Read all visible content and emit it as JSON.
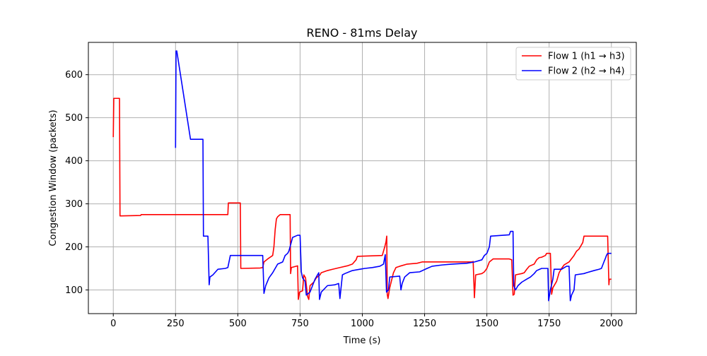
{
  "chart_data": {
    "type": "line",
    "title": "RENO - 81ms Delay",
    "xlabel": "Time (s)",
    "ylabel": "Congestion Window (packets)",
    "xlim": [
      -100,
      2100
    ],
    "ylim": [
      45,
      675
    ],
    "xticks": [
      0,
      250,
      500,
      750,
      1000,
      1250,
      1500,
      1750,
      2000
    ],
    "yticks": [
      100,
      200,
      300,
      400,
      500,
      600
    ],
    "grid": true,
    "legend_position": "top-right",
    "series": [
      {
        "name": "Flow 1 (h1 → h3)",
        "color": "#ff0000",
        "points": [
          [
            0,
            455
          ],
          [
            2,
            545
          ],
          [
            25,
            545
          ],
          [
            27,
            272
          ],
          [
            110,
            273
          ],
          [
            112,
            275
          ],
          [
            460,
            275
          ],
          [
            462,
            302
          ],
          [
            510,
            302
          ],
          [
            512,
            150
          ],
          [
            590,
            151
          ],
          [
            600,
            152
          ],
          [
            605,
            165
          ],
          [
            620,
            172
          ],
          [
            635,
            178
          ],
          [
            640,
            180
          ],
          [
            645,
            200
          ],
          [
            650,
            240
          ],
          [
            655,
            265
          ],
          [
            660,
            270
          ],
          [
            670,
            275
          ],
          [
            710,
            275
          ],
          [
            712,
            138
          ],
          [
            715,
            152
          ],
          [
            740,
            156
          ],
          [
            743,
            78
          ],
          [
            748,
            95
          ],
          [
            760,
            98
          ],
          [
            765,
            135
          ],
          [
            772,
            128
          ],
          [
            780,
            85
          ],
          [
            785,
            78
          ],
          [
            790,
            110
          ],
          [
            805,
            118
          ],
          [
            815,
            128
          ],
          [
            830,
            135
          ],
          [
            835,
            140
          ],
          [
            860,
            145
          ],
          [
            880,
            148
          ],
          [
            910,
            152
          ],
          [
            940,
            156
          ],
          [
            960,
            160
          ],
          [
            975,
            170
          ],
          [
            980,
            178
          ],
          [
            1080,
            180
          ],
          [
            1090,
            200
          ],
          [
            1095,
            212
          ],
          [
            1098,
            225
          ],
          [
            1100,
            90
          ],
          [
            1103,
            80
          ],
          [
            1110,
            105
          ],
          [
            1125,
            140
          ],
          [
            1135,
            152
          ],
          [
            1150,
            155
          ],
          [
            1180,
            160
          ],
          [
            1220,
            162
          ],
          [
            1240,
            165
          ],
          [
            1440,
            165
          ],
          [
            1445,
            166
          ],
          [
            1450,
            82
          ],
          [
            1455,
            135
          ],
          [
            1480,
            138
          ],
          [
            1490,
            142
          ],
          [
            1500,
            150
          ],
          [
            1510,
            165
          ],
          [
            1525,
            172
          ],
          [
            1590,
            172
          ],
          [
            1600,
            170
          ],
          [
            1605,
            88
          ],
          [
            1610,
            90
          ],
          [
            1615,
            135
          ],
          [
            1640,
            138
          ],
          [
            1650,
            140
          ],
          [
            1660,
            148
          ],
          [
            1670,
            155
          ],
          [
            1690,
            160
          ],
          [
            1700,
            170
          ],
          [
            1710,
            175
          ],
          [
            1720,
            176
          ],
          [
            1735,
            180
          ],
          [
            1740,
            185
          ],
          [
            1755,
            185
          ],
          [
            1760,
            90
          ],
          [
            1765,
            105
          ],
          [
            1780,
            120
          ],
          [
            1790,
            140
          ],
          [
            1800,
            150
          ],
          [
            1810,
            158
          ],
          [
            1830,
            165
          ],
          [
            1850,
            180
          ],
          [
            1860,
            190
          ],
          [
            1870,
            195
          ],
          [
            1885,
            210
          ],
          [
            1890,
            225
          ],
          [
            1985,
            225
          ],
          [
            1990,
            112
          ],
          [
            1992,
            125
          ],
          [
            2000,
            125
          ]
        ]
      },
      {
        "name": "Flow 2 (h2 → h4)",
        "color": "#0000ff",
        "points": [
          [
            250,
            430
          ],
          [
            252,
            655
          ],
          [
            255,
            655
          ],
          [
            310,
            450
          ],
          [
            360,
            450
          ],
          [
            362,
            225
          ],
          [
            380,
            225
          ],
          [
            385,
            112
          ],
          [
            388,
            130
          ],
          [
            400,
            135
          ],
          [
            420,
            148
          ],
          [
            450,
            150
          ],
          [
            460,
            152
          ],
          [
            470,
            180
          ],
          [
            600,
            180
          ],
          [
            605,
            92
          ],
          [
            612,
            110
          ],
          [
            625,
            128
          ],
          [
            640,
            140
          ],
          [
            660,
            160
          ],
          [
            680,
            165
          ],
          [
            690,
            180
          ],
          [
            700,
            185
          ],
          [
            705,
            190
          ],
          [
            720,
            222
          ],
          [
            740,
            227
          ],
          [
            750,
            227
          ],
          [
            755,
            142
          ],
          [
            760,
            128
          ],
          [
            770,
            120
          ],
          [
            775,
            88
          ],
          [
            790,
            95
          ],
          [
            800,
            110
          ],
          [
            810,
            125
          ],
          [
            820,
            135
          ],
          [
            825,
            140
          ],
          [
            828,
            78
          ],
          [
            835,
            95
          ],
          [
            860,
            110
          ],
          [
            890,
            112
          ],
          [
            905,
            115
          ],
          [
            910,
            80
          ],
          [
            920,
            135
          ],
          [
            930,
            138
          ],
          [
            960,
            145
          ],
          [
            990,
            148
          ],
          [
            1010,
            150
          ],
          [
            1040,
            152
          ],
          [
            1070,
            155
          ],
          [
            1085,
            160
          ],
          [
            1092,
            182
          ],
          [
            1097,
            95
          ],
          [
            1105,
            100
          ],
          [
            1110,
            130
          ],
          [
            1150,
            132
          ],
          [
            1155,
            100
          ],
          [
            1160,
            115
          ],
          [
            1170,
            130
          ],
          [
            1190,
            140
          ],
          [
            1230,
            142
          ],
          [
            1260,
            150
          ],
          [
            1280,
            155
          ],
          [
            1320,
            158
          ],
          [
            1360,
            160
          ],
          [
            1420,
            162
          ],
          [
            1450,
            165
          ],
          [
            1480,
            170
          ],
          [
            1490,
            180
          ],
          [
            1500,
            185
          ],
          [
            1510,
            200
          ],
          [
            1515,
            225
          ],
          [
            1590,
            228
          ],
          [
            1595,
            236
          ],
          [
            1605,
            236
          ],
          [
            1608,
            110
          ],
          [
            1615,
            100
          ],
          [
            1625,
            110
          ],
          [
            1640,
            118
          ],
          [
            1660,
            125
          ],
          [
            1675,
            130
          ],
          [
            1690,
            138
          ],
          [
            1700,
            145
          ],
          [
            1720,
            150
          ],
          [
            1745,
            150
          ],
          [
            1748,
            75
          ],
          [
            1755,
            100
          ],
          [
            1765,
            125
          ],
          [
            1770,
            148
          ],
          [
            1800,
            148
          ],
          [
            1820,
            155
          ],
          [
            1830,
            155
          ],
          [
            1835,
            75
          ],
          [
            1840,
            88
          ],
          [
            1850,
            100
          ],
          [
            1855,
            135
          ],
          [
            1890,
            138
          ],
          [
            1900,
            140
          ],
          [
            1930,
            145
          ],
          [
            1950,
            148
          ],
          [
            1960,
            150
          ],
          [
            1970,
            165
          ],
          [
            1975,
            172
          ],
          [
            1980,
            180
          ],
          [
            1985,
            185
          ],
          [
            2000,
            185
          ]
        ]
      }
    ]
  }
}
